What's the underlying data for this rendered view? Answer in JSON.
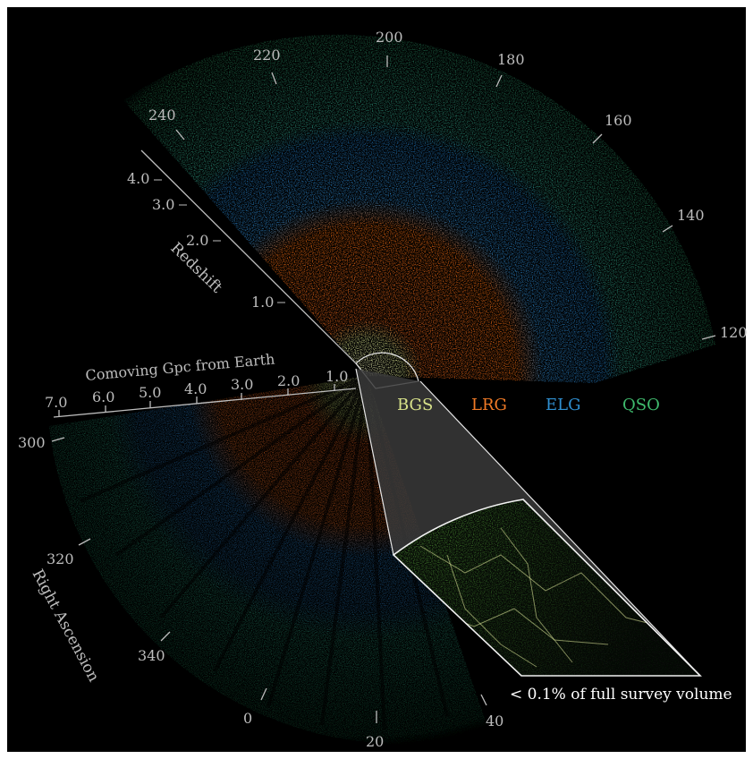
{
  "ra_labels": {
    "ra_200": "200",
    "ra_180": "180",
    "ra_220": "220",
    "ra_160": "160",
    "ra_240": "240",
    "ra_140": "140",
    "ra_120": "120",
    "ra_300": "300",
    "ra_320": "320",
    "ra_340": "340",
    "ra_0": "0",
    "ra_20": "20",
    "ra_40": "40"
  },
  "redshift_axis": {
    "title": "Redshift",
    "ticks": [
      "4.0",
      "3.0",
      "2.0",
      "1.0"
    ]
  },
  "distance_axis": {
    "title": "Comoving Gpc from Earth",
    "ticks": [
      "7.0",
      "6.0",
      "5.0",
      "4.0",
      "3.0",
      "2.0",
      "1.0"
    ]
  },
  "ra_axis_title": "Right Ascension",
  "legend": [
    {
      "label": "BGS",
      "color": "#d8e28a"
    },
    {
      "label": "LRG",
      "color": "#f07a26"
    },
    {
      "label": "ELG",
      "color": "#2f8fd0"
    },
    {
      "label": "QSO",
      "color": "#3fba6d"
    }
  ],
  "inset_caption": "< 0.1% of full survey volume"
}
